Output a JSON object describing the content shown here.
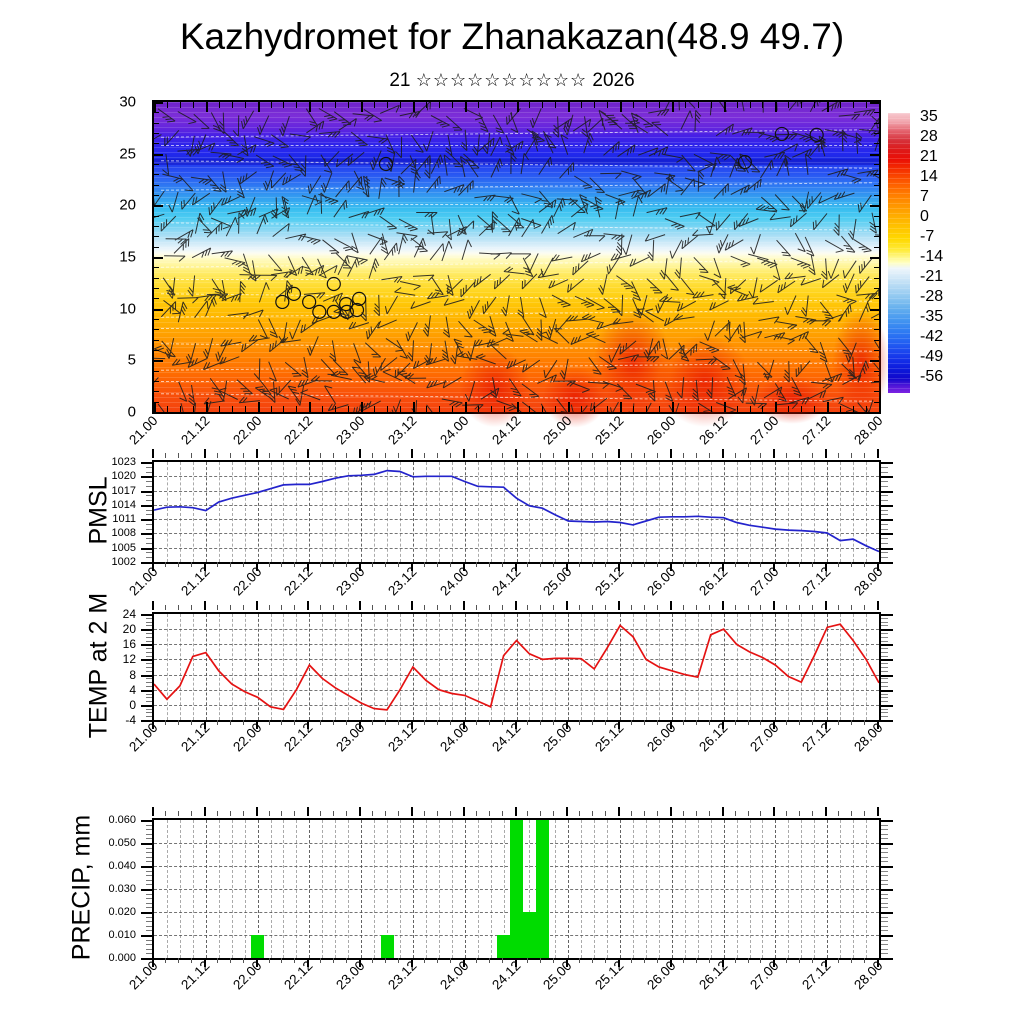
{
  "title": "Kazhydromet for Zhanakazan(48.9 49.7)",
  "subtitle": {
    "day": "21",
    "stars": "☆☆☆☆☆☆☆☆☆☆",
    "year": "2026"
  },
  "x_axis": {
    "labels": [
      "21.00",
      "21.12",
      "22.00",
      "22.12",
      "23.00",
      "23.12",
      "24.00",
      "24.12",
      "25.00",
      "25.12",
      "26.00",
      "26.12",
      "27.00",
      "27.12",
      "28.00"
    ],
    "hours_total": 168,
    "minor_step_h": 3,
    "major_step_h": 12
  },
  "colorbar": {
    "tick_labels": [
      "35",
      "28",
      "21",
      "14",
      "7",
      "0",
      "-7",
      "-14",
      "-21",
      "-28",
      "-35",
      "-42",
      "-49",
      "-56"
    ],
    "stops": [
      {
        "f": 0.0,
        "c": "#f7c9cf"
      },
      {
        "f": 0.03,
        "c": "#f2a8b0"
      },
      {
        "f": 0.065,
        "c": "#e4626d"
      },
      {
        "f": 0.1,
        "c": "#d62f38"
      },
      {
        "f": 0.13,
        "c": "#dd1a1a"
      },
      {
        "f": 0.165,
        "c": "#ea0f06"
      },
      {
        "f": 0.205,
        "c": "#f63300"
      },
      {
        "f": 0.25,
        "c": "#fd5c00"
      },
      {
        "f": 0.29,
        "c": "#ff7c00"
      },
      {
        "f": 0.33,
        "c": "#ff9600"
      },
      {
        "f": 0.37,
        "c": "#ffae00"
      },
      {
        "f": 0.41,
        "c": "#ffc400"
      },
      {
        "f": 0.45,
        "c": "#ffd800"
      },
      {
        "f": 0.49,
        "c": "#ffeb3c"
      },
      {
        "f": 0.515,
        "c": "#fff788"
      },
      {
        "f": 0.535,
        "c": "#ffffc2"
      },
      {
        "f": 0.555,
        "c": "#eef6fb"
      },
      {
        "f": 0.585,
        "c": "#d4e9f8"
      },
      {
        "f": 0.62,
        "c": "#b3d9f4"
      },
      {
        "f": 0.66,
        "c": "#8cc6f0"
      },
      {
        "f": 0.7,
        "c": "#63aeee"
      },
      {
        "f": 0.74,
        "c": "#4496f0"
      },
      {
        "f": 0.78,
        "c": "#2f7cf2"
      },
      {
        "f": 0.82,
        "c": "#2360f2"
      },
      {
        "f": 0.855,
        "c": "#1b44ee"
      },
      {
        "f": 0.89,
        "c": "#122ae6"
      },
      {
        "f": 0.92,
        "c": "#0c17d8"
      },
      {
        "f": 0.95,
        "c": "#1208cc"
      },
      {
        "f": 0.975,
        "c": "#5116d8"
      },
      {
        "f": 1.0,
        "c": "#7c22e2"
      }
    ]
  },
  "chart_data": [
    {
      "id": "cross_section",
      "type": "heatmap",
      "description": "time-height temperature cross-section with wind barbs",
      "y_ticks": [
        "0",
        "5",
        "10",
        "15",
        "20",
        "25",
        "30"
      ],
      "ylim": [
        0,
        30
      ],
      "band_stops": [
        {
          "f": 0.0,
          "c": "#6d22c8"
        },
        {
          "f": 0.045,
          "c": "#7c2ed8"
        },
        {
          "f": 0.085,
          "c": "#6325de"
        },
        {
          "f": 0.11,
          "c": "#4520e6"
        },
        {
          "f": 0.135,
          "c": "#3023ea"
        },
        {
          "f": 0.165,
          "c": "#2328ee"
        },
        {
          "f": 0.185,
          "c": "#1b2ae4"
        },
        {
          "f": 0.205,
          "c": "#2441f0"
        },
        {
          "f": 0.24,
          "c": "#2a5cf2"
        },
        {
          "f": 0.275,
          "c": "#2f7ef2"
        },
        {
          "f": 0.31,
          "c": "#34a0f0"
        },
        {
          "f": 0.345,
          "c": "#38bdf0"
        },
        {
          "f": 0.375,
          "c": "#4fcdf2"
        },
        {
          "f": 0.405,
          "c": "#7dd5f3"
        },
        {
          "f": 0.43,
          "c": "#a8def5"
        },
        {
          "f": 0.455,
          "c": "#cfeaf8"
        },
        {
          "f": 0.475,
          "c": "#ecf6fb"
        },
        {
          "f": 0.49,
          "c": "#fdfdee"
        },
        {
          "f": 0.505,
          "c": "#fffbc4"
        },
        {
          "f": 0.525,
          "c": "#fff6a0"
        },
        {
          "f": 0.55,
          "c": "#ffec6a"
        },
        {
          "f": 0.58,
          "c": "#ffe13e"
        },
        {
          "f": 0.615,
          "c": "#ffd41c"
        },
        {
          "f": 0.65,
          "c": "#ffc708"
        },
        {
          "f": 0.69,
          "c": "#ffb800"
        },
        {
          "f": 0.73,
          "c": "#ffa800"
        },
        {
          "f": 0.775,
          "c": "#ff9600"
        },
        {
          "f": 0.82,
          "c": "#ff8300"
        },
        {
          "f": 0.865,
          "c": "#ff7000"
        },
        {
          "f": 0.91,
          "c": "#fc5e04"
        },
        {
          "f": 0.95,
          "c": "#f84e0a"
        },
        {
          "f": 1.0,
          "c": "#f4430e"
        }
      ],
      "hot_spots": [
        {
          "fx": 0.47,
          "fy": 0.92,
          "w": 0.1,
          "h": 0.26
        },
        {
          "fx": 0.58,
          "fy": 0.95,
          "w": 0.09,
          "h": 0.2
        },
        {
          "fx": 0.66,
          "fy": 0.84,
          "w": 0.11,
          "h": 0.34
        },
        {
          "fx": 0.76,
          "fy": 0.9,
          "w": 0.13,
          "h": 0.3
        },
        {
          "fx": 0.88,
          "fy": 0.96,
          "w": 0.1,
          "h": 0.16
        },
        {
          "fx": 0.975,
          "fy": 0.84,
          "w": 0.08,
          "h": 0.34
        }
      ],
      "calm_circles": [
        {
          "fx": 0.177,
          "fy": 0.645
        },
        {
          "fx": 0.193,
          "fy": 0.619
        },
        {
          "fx": 0.214,
          "fy": 0.645
        },
        {
          "fx": 0.228,
          "fy": 0.677
        },
        {
          "fx": 0.248,
          "fy": 0.677
        },
        {
          "fx": 0.265,
          "fy": 0.652
        },
        {
          "fx": 0.248,
          "fy": 0.587
        },
        {
          "fx": 0.266,
          "fy": 0.677
        },
        {
          "fx": 0.28,
          "fy": 0.671
        },
        {
          "fx": 0.283,
          "fy": 0.635
        },
        {
          "fx": 0.32,
          "fy": 0.2
        },
        {
          "fx": 0.815,
          "fy": 0.194
        },
        {
          "fx": 0.866,
          "fy": 0.103
        },
        {
          "fx": 0.914,
          "fy": 0.106
        }
      ],
      "contour_dashes_fy": [
        0.1,
        0.14,
        0.2,
        0.27,
        0.33,
        0.4,
        0.52,
        0.57,
        0.63,
        0.68,
        0.73,
        0.79,
        0.85,
        0.9,
        0.95
      ],
      "barb_field": {
        "cols": 46,
        "rows": 15,
        "seed": 7,
        "color": "#1c1c1c",
        "shaft": 21
      }
    },
    {
      "id": "pmsl",
      "type": "line",
      "label": "PMSL",
      "color": "#2323cc",
      "ylim": [
        1002,
        1023
      ],
      "y_ticks": [
        "1002",
        "1005",
        "1008",
        "1011",
        "1014",
        "1017",
        "1020",
        "1023"
      ],
      "step_h": 3,
      "values": [
        1012.9,
        1013.5,
        1013.6,
        1013.4,
        1012.8,
        1014.6,
        1015.4,
        1016.0,
        1016.6,
        1017.4,
        1018.2,
        1018.3,
        1018.3,
        1018.9,
        1019.6,
        1020.1,
        1020.2,
        1020.4,
        1021.2,
        1021.0,
        1019.9,
        1020.0,
        1020.0,
        1020.0,
        1018.9,
        1017.9,
        1017.8,
        1017.7,
        1015.4,
        1013.8,
        1013.3,
        1011.9,
        1010.6,
        1010.5,
        1010.4,
        1010.5,
        1010.3,
        1009.8,
        1010.6,
        1011.4,
        1011.5,
        1011.5,
        1011.6,
        1011.4,
        1011.3,
        1010.3,
        1009.7,
        1009.3,
        1008.9,
        1008.7,
        1008.6,
        1008.4,
        1008.1,
        1006.5,
        1006.8,
        1005.4,
        1004.2
      ]
    },
    {
      "id": "temp",
      "type": "line",
      "label": "TEMP at 2 M",
      "color": "#e51212",
      "ylim": [
        -4,
        24
      ],
      "y_ticks": [
        "-4",
        "0",
        "4",
        "8",
        "12",
        "16",
        "20",
        "24"
      ],
      "step_h": 3,
      "values": [
        5.5,
        1.5,
        5.0,
        12.8,
        13.8,
        9.0,
        5.5,
        3.5,
        2.0,
        -0.5,
        -1.2,
        4.0,
        10.5,
        7.0,
        4.5,
        2.5,
        0.5,
        -1.0,
        -1.3,
        4.0,
        10.0,
        6.5,
        4.0,
        3.0,
        2.5,
        1.0,
        -0.5,
        13.0,
        17.0,
        13.5,
        12.0,
        12.3,
        12.3,
        12.2,
        9.5,
        15.0,
        21.0,
        18.0,
        12.0,
        10.0,
        9.0,
        8.0,
        7.3,
        18.5,
        20.0,
        16.0,
        14.0,
        12.5,
        10.5,
        7.5,
        6.0,
        13.0,
        20.5,
        21.3,
        17.0,
        12.0,
        5.8
      ]
    },
    {
      "id": "precip",
      "type": "bar",
      "label": "PRECIP, mm",
      "color": "#00dc00",
      "ylim": [
        0,
        0.06
      ],
      "y_ticks": [
        "0.000",
        "0.010",
        "0.020",
        "0.030",
        "0.040",
        "0.050",
        "0.060"
      ],
      "step_h": 3,
      "bar_width_h": 3,
      "values": [
        0,
        0,
        0,
        0,
        0,
        0,
        0,
        0,
        0.01,
        0,
        0,
        0,
        0,
        0,
        0,
        0,
        0,
        0,
        0.01,
        0,
        0,
        0,
        0,
        0,
        0,
        0,
        0,
        0.01,
        0.06,
        0.02,
        0.06,
        0,
        0,
        0,
        0,
        0,
        0,
        0,
        0,
        0,
        0,
        0,
        0,
        0,
        0,
        0,
        0,
        0,
        0,
        0,
        0,
        0,
        0,
        0,
        0,
        0,
        0
      ]
    }
  ]
}
